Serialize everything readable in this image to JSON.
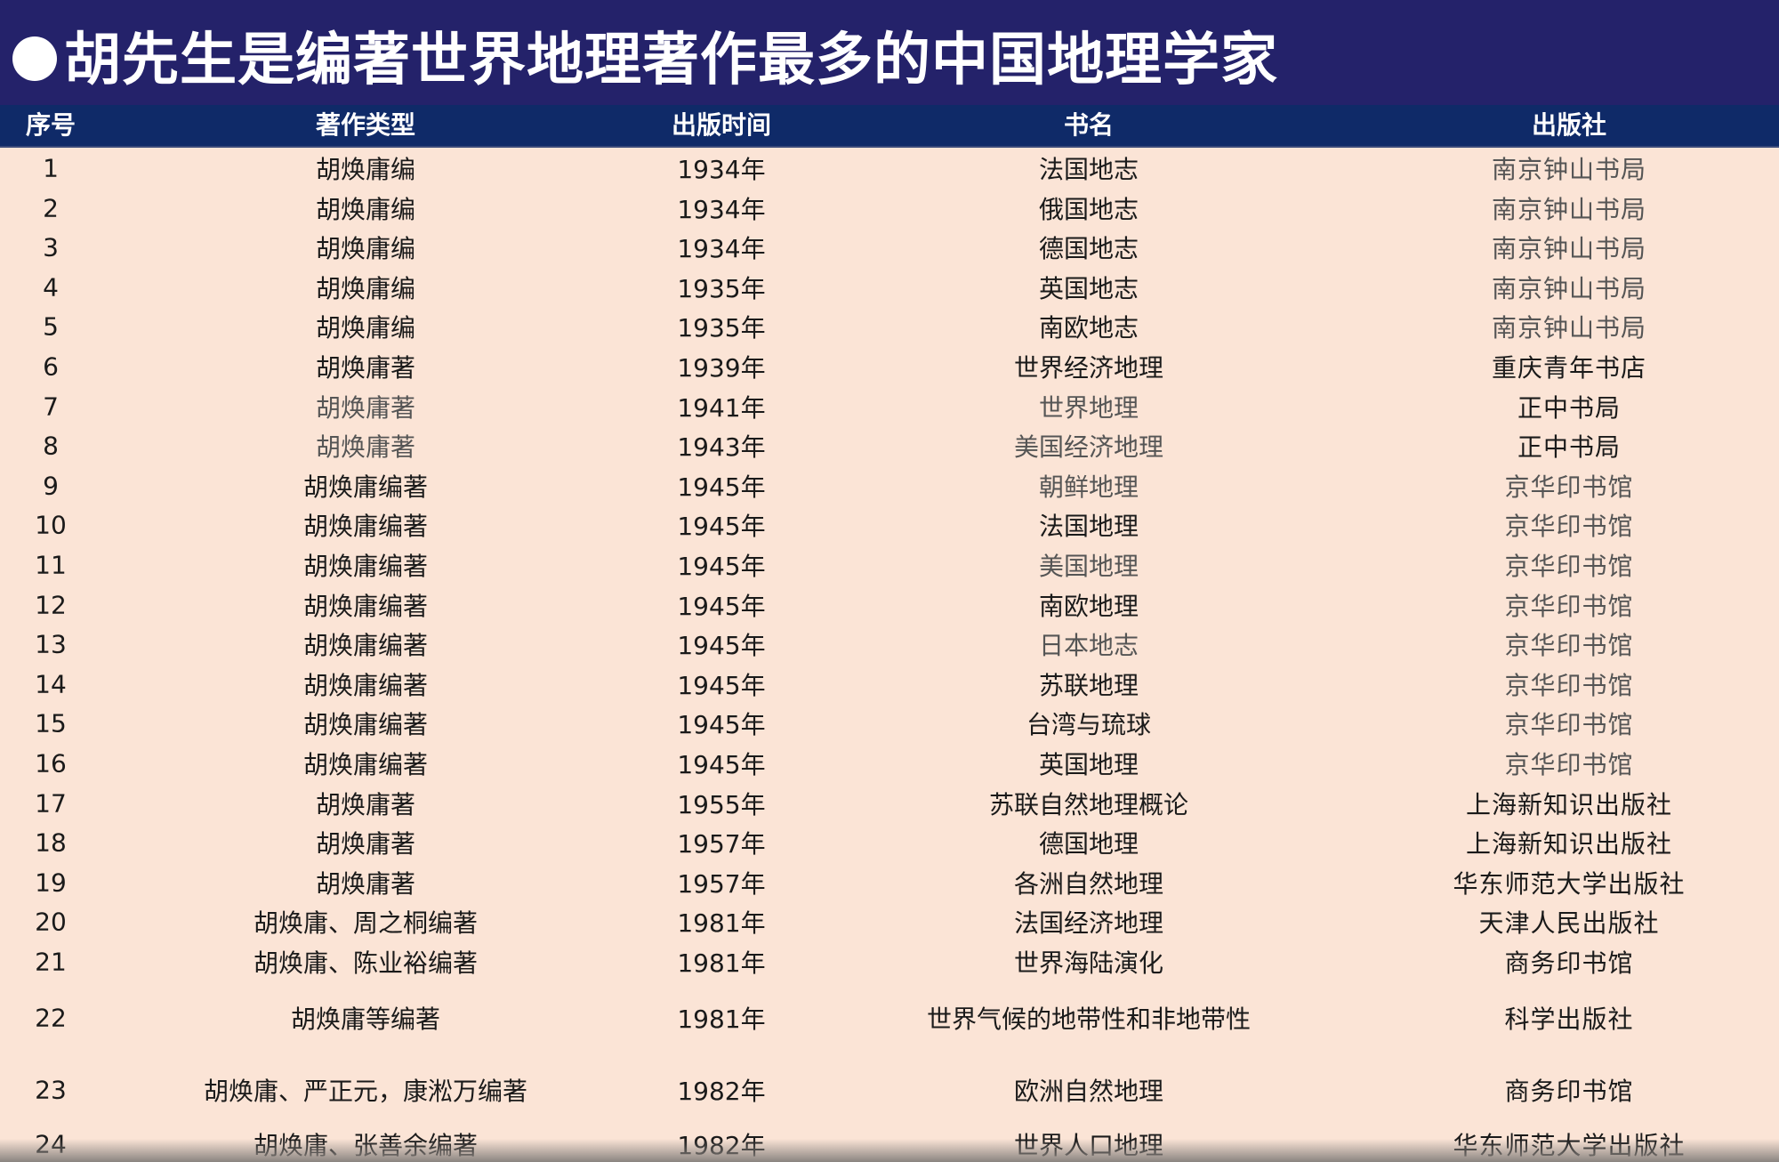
{
  "title": "胡先生是编著世界地理著作最多的中国地理学家",
  "colors": {
    "title_bg": "#24226a",
    "header_bg": "#0f2a68",
    "body_bg": "#fbe4d6"
  },
  "table": {
    "headers": [
      "序号",
      "著作类型",
      "出版时间",
      "书名",
      "出版社"
    ],
    "rows": [
      [
        "1",
        "胡焕庸编",
        "1934年",
        "法国地志",
        "南京钟山书局"
      ],
      [
        "2",
        "胡焕庸编",
        "1934年",
        "俄国地志",
        "南京钟山书局"
      ],
      [
        "3",
        "胡焕庸编",
        "1934年",
        "德国地志",
        "南京钟山书局"
      ],
      [
        "4",
        "胡焕庸编",
        "1935年",
        "英国地志",
        "南京钟山书局"
      ],
      [
        "5",
        "胡焕庸编",
        "1935年",
        "南欧地志",
        "南京钟山书局"
      ],
      [
        "6",
        "胡焕庸著",
        "1939年",
        "世界经济地理",
        "重庆青年书店"
      ],
      [
        "7",
        "胡焕庸著",
        "1941年",
        "世界地理",
        "正中书局"
      ],
      [
        "8",
        "胡焕庸著",
        "1943年",
        "美国经济地理",
        "正中书局"
      ],
      [
        "9",
        "胡焕庸编著",
        "1945年",
        "朝鲜地理",
        "京华印书馆"
      ],
      [
        "10",
        "胡焕庸编著",
        "1945年",
        "法国地理",
        "京华印书馆"
      ],
      [
        "11",
        "胡焕庸编著",
        "1945年",
        "美国地理",
        "京华印书馆"
      ],
      [
        "12",
        "胡焕庸编著",
        "1945年",
        "南欧地理",
        "京华印书馆"
      ],
      [
        "13",
        "胡焕庸编著",
        "1945年",
        "日本地志",
        "京华印书馆"
      ],
      [
        "14",
        "胡焕庸编著",
        "1945年",
        "苏联地理",
        "京华印书馆"
      ],
      [
        "15",
        "胡焕庸编著",
        "1945年",
        "台湾与琉球",
        "京华印书馆"
      ],
      [
        "16",
        "胡焕庸编著",
        "1945年",
        "英国地理",
        "京华印书馆"
      ],
      [
        "17",
        "胡焕庸著",
        "1955年",
        "苏联自然地理概论",
        "上海新知识出版社"
      ],
      [
        "18",
        "胡焕庸著",
        "1957年",
        "德国地理",
        "上海新知识出版社"
      ],
      [
        "19",
        "胡焕庸著",
        "1957年",
        "各洲自然地理",
        "华东师范大学出版社"
      ],
      [
        "20",
        "胡焕庸、周之桐编著",
        "1981年",
        "法国经济地理",
        "天津人民出版社"
      ],
      [
        "21",
        "胡焕庸、陈业裕编著",
        "1981年",
        "世界海陆演化",
        "商务印书馆"
      ],
      [
        "22",
        "胡焕庸等编著",
        "1981年",
        "世界气候的地带性和非地带性",
        "科学出版社"
      ],
      [
        "23",
        "胡焕庸、严正元，康淞万编著",
        "1982年",
        "欧洲自然地理",
        "商务印书馆"
      ],
      [
        "24",
        "胡焕庸、张善余编著",
        "1982年",
        "世界人口地理",
        "华东师范大学出版社"
      ]
    ]
  }
}
